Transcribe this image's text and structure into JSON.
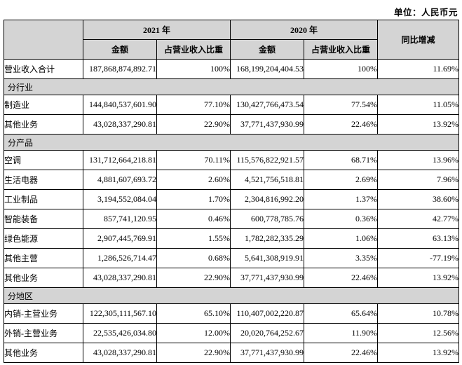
{
  "unit_label": "单位：人民币元",
  "colors": {
    "header_bg": "#d4d4d4",
    "border": "#000000",
    "text": "#000000"
  },
  "table": {
    "header": {
      "year_2021": "2021 年",
      "year_2020": "2020 年",
      "yoy": "同比增减",
      "amount": "金额",
      "proportion": "占营业收入比重"
    },
    "rows": [
      {
        "type": "data",
        "label": "营业收入合计",
        "a2021": "187,868,874,892.71",
        "p2021": "100%",
        "a2020": "168,199,204,404.53",
        "p2020": "100%",
        "yoy": "11.69%"
      },
      {
        "type": "section",
        "label": "分行业"
      },
      {
        "type": "data",
        "label": "制造业",
        "a2021": "144,840,537,601.90",
        "p2021": "77.10%",
        "a2020": "130,427,766,473.54",
        "p2020": "77.54%",
        "yoy": "11.05%"
      },
      {
        "type": "data",
        "label": "其他业务",
        "a2021": "43,028,337,290.81",
        "p2021": "22.90%",
        "a2020": "37,771,437,930.99",
        "p2020": "22.46%",
        "yoy": "13.92%"
      },
      {
        "type": "section",
        "label": "分产品"
      },
      {
        "type": "data",
        "label": "空调",
        "a2021": "131,712,664,218.81",
        "p2021": "70.11%",
        "a2020": "115,576,822,921.57",
        "p2020": "68.71%",
        "yoy": "13.96%"
      },
      {
        "type": "data",
        "label": "生活电器",
        "a2021": "4,881,607,693.72",
        "p2021": "2.60%",
        "a2020": "4,521,756,518.81",
        "p2020": "2.69%",
        "yoy": "7.96%"
      },
      {
        "type": "data",
        "label": "工业制品",
        "a2021": "3,194,552,084.04",
        "p2021": "1.70%",
        "a2020": "2,304,816,992.20",
        "p2020": "1.37%",
        "yoy": "38.60%"
      },
      {
        "type": "data",
        "label": "智能装备",
        "a2021": "857,741,120.95",
        "p2021": "0.46%",
        "a2020": "600,778,785.76",
        "p2020": "0.36%",
        "yoy": "42.77%"
      },
      {
        "type": "data",
        "label": "绿色能源",
        "a2021": "2,907,445,769.91",
        "p2021": "1.55%",
        "a2020": "1,782,282,335.29",
        "p2020": "1.06%",
        "yoy": "63.13%"
      },
      {
        "type": "data",
        "label": "其他主营",
        "a2021": "1,286,526,714.47",
        "p2021": "0.68%",
        "a2020": "5,641,308,919.91",
        "p2020": "3.35%",
        "yoy": "-77.19%"
      },
      {
        "type": "data",
        "label": "其他业务",
        "a2021": "43,028,337,290.81",
        "p2021": "22.90%",
        "a2020": "37,771,437,930.99",
        "p2020": "22.46%",
        "yoy": "13.92%"
      },
      {
        "type": "section",
        "label": "分地区"
      },
      {
        "type": "data",
        "label": "内销-主营业务",
        "a2021": "122,305,111,567.10",
        "p2021": "65.10%",
        "a2020": "110,407,002,220.87",
        "p2020": "65.64%",
        "yoy": "10.78%"
      },
      {
        "type": "data",
        "label": "外销-主营业务",
        "a2021": "22,535,426,034.80",
        "p2021": "12.00%",
        "a2020": "20,020,764,252.67",
        "p2020": "11.90%",
        "yoy": "12.56%"
      },
      {
        "type": "data",
        "label": "其他业务",
        "a2021": "43,028,337,290.81",
        "p2021": "22.90%",
        "a2020": "37,771,437,930.99",
        "p2020": "22.46%",
        "yoy": "13.92%"
      }
    ]
  }
}
